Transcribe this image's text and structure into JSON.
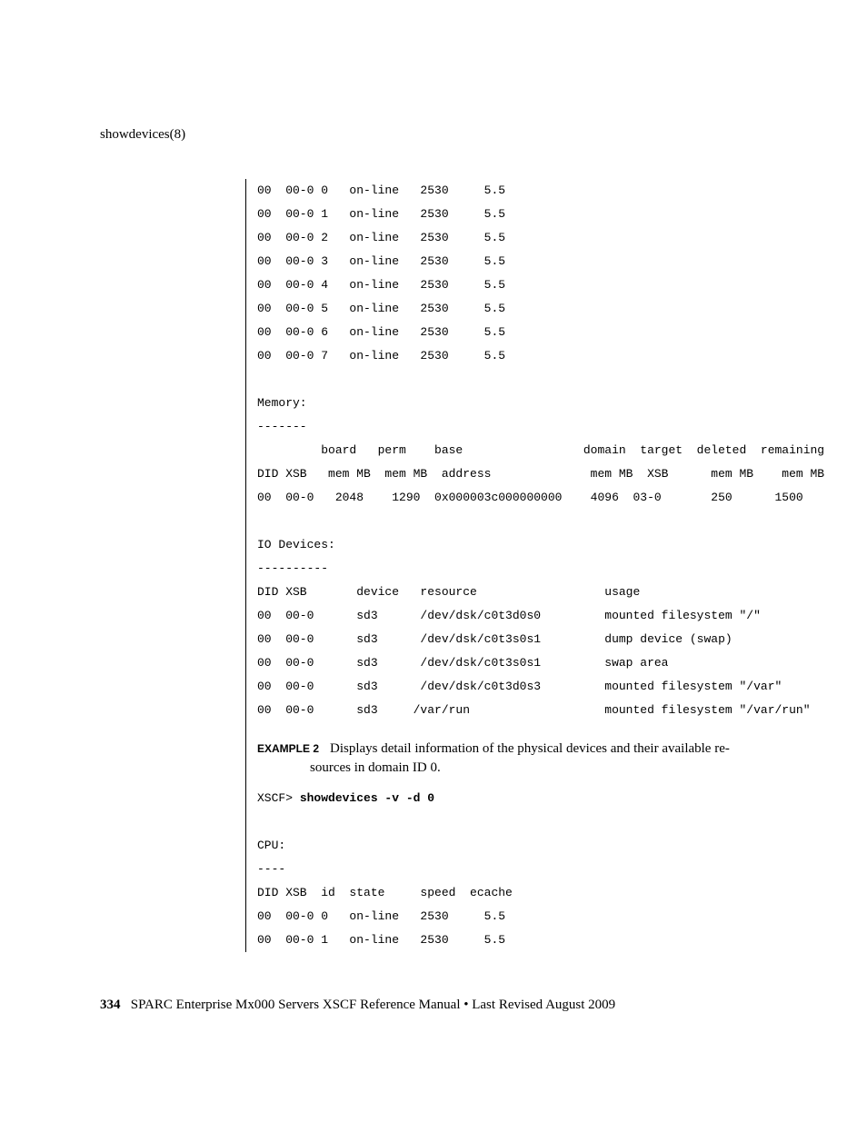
{
  "header": {
    "command": "showdevices(8)"
  },
  "cpu_block1": {
    "rows": [
      "00  00-0 0   on-line   2530     5.5",
      "00  00-0 1   on-line   2530     5.5",
      "00  00-0 2   on-line   2530     5.5",
      "00  00-0 3   on-line   2530     5.5",
      "00  00-0 4   on-line   2530     5.5",
      "00  00-0 5   on-line   2530     5.5",
      "00  00-0 6   on-line   2530     5.5",
      "00  00-0 7   on-line   2530     5.5"
    ]
  },
  "memory_block": {
    "title": "Memory:",
    "sep": "-------",
    "h1": "         board   perm    base                 domain  target  deleted  remaining",
    "h2": "DID XSB   mem MB  mem MB  address              mem MB  XSB      mem MB    mem MB",
    "r1": "00  00-0   2048    1290  0x000003c000000000    4096  03-0       250      1500"
  },
  "io_block": {
    "title": "IO Devices:",
    "sep": "----------",
    "h1": "DID XSB       device   resource                  usage",
    "rows": [
      "00  00-0      sd3      /dev/dsk/c0t3d0s0         mounted filesystem \"/\"",
      "00  00-0      sd3      /dev/dsk/c0t3s0s1         dump device (swap)",
      "00  00-0      sd3      /dev/dsk/c0t3s0s1         swap area",
      "00  00-0      sd3      /dev/dsk/c0t3d0s3         mounted filesystem \"/var\"",
      "00  00-0      sd3     /var/run                   mounted filesystem \"/var/run\""
    ]
  },
  "example2": {
    "label": "EXAMPLE 2",
    "text_line1": "Displays detail information of the physical devices and their available re-",
    "text_line2": "sources in domain ID 0.",
    "prompt": "XSCF> ",
    "cmd": "showdevices -v -d 0"
  },
  "cpu_block2": {
    "title": "CPU:",
    "sep": "----",
    "h1": "DID XSB  id  state     speed  ecache",
    "rows": [
      "00  00-0 0   on-line   2530     5.5",
      "00  00-0 1   on-line   2530     5.5"
    ]
  },
  "footer": {
    "pagenum": "334",
    "text": "SPARC Enterprise Mx000 Servers XSCF Reference Manual • Last Revised August 2009"
  }
}
